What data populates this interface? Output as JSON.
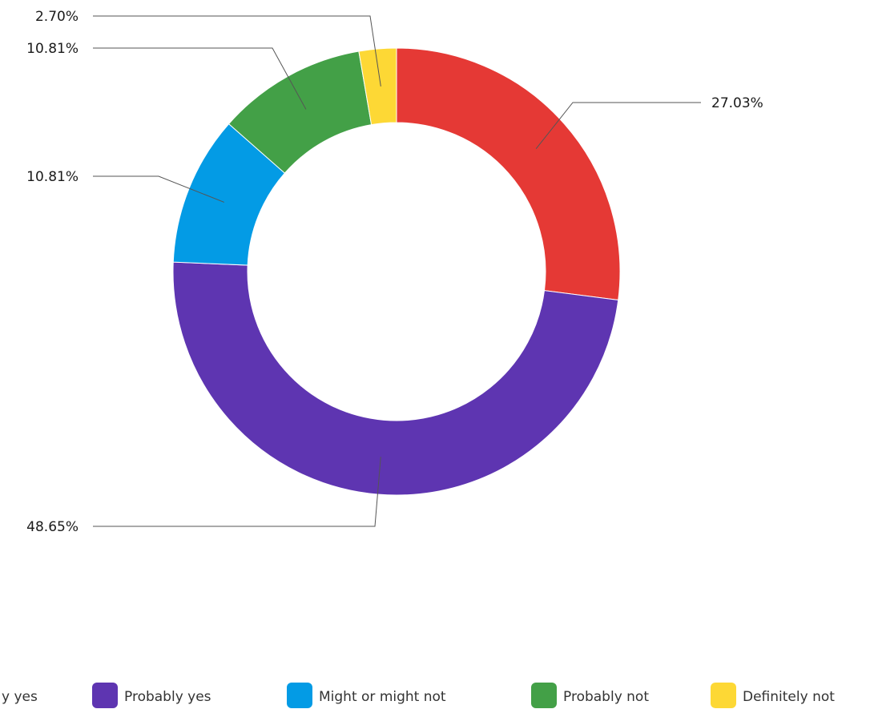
{
  "chart_data": {
    "type": "pie",
    "donut": true,
    "slices": [
      {
        "label": "Definitely yes",
        "value": 27.03,
        "value_label": "27.03%",
        "color": "#e53935",
        "legend_text": "y yes"
      },
      {
        "label": "Probably yes",
        "value": 48.65,
        "value_label": "48.65%",
        "color": "#5e35b1",
        "legend_text": "Probably yes"
      },
      {
        "label": "Might or might not",
        "value": 10.81,
        "value_label": "10.81%",
        "color": "#039be5",
        "legend_text": "Might or might not"
      },
      {
        "label": "Probably not",
        "value": 10.81,
        "value_label": "10.81%",
        "color": "#43a047",
        "legend_text": "Probably not"
      },
      {
        "label": "Definitely not",
        "value": 2.7,
        "value_label": "2.70%",
        "color": "#fdd835",
        "legend_text": "Definitely not"
      }
    ],
    "legend_position": "bottom"
  }
}
